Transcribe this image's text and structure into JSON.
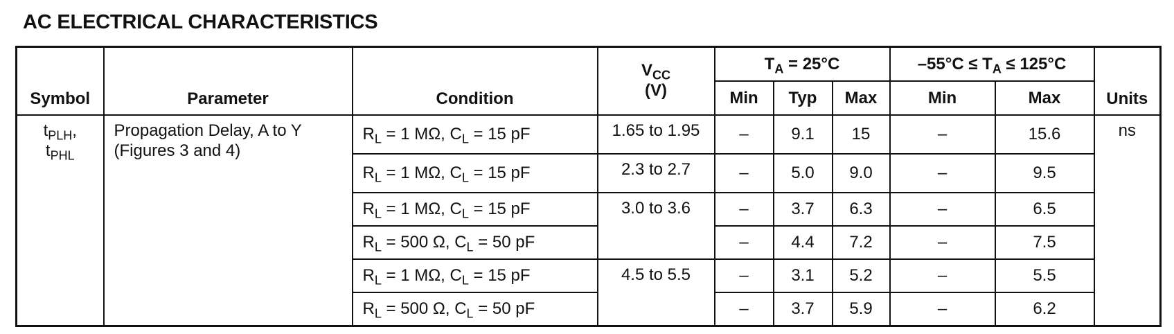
{
  "title": "AC ELECTRICAL CHARACTERISTICS",
  "table": {
    "headers": {
      "symbol": "Symbol",
      "parameter": "Parameter",
      "condition": "Condition",
      "vcc": [
        [
          "V",
          {
            "sub": "CC"
          }
        ],
        [
          "(V)"
        ]
      ],
      "group1": [
        "T",
        {
          "sub": "A"
        },
        " = 25°C"
      ],
      "group2": [
        "–55°C ≤ T",
        {
          "sub": "A"
        },
        " ≤ 125°C"
      ],
      "group1_cols": [
        "Min",
        "Typ",
        "Max"
      ],
      "group2_cols": [
        "Min",
        "Max"
      ],
      "units": "Units"
    },
    "symbol": [
      [
        "t",
        {
          "sub": "PLH"
        },
        ","
      ],
      [
        "t",
        {
          "sub": "PHL"
        }
      ]
    ],
    "parameter": [
      "Propagation Delay, A to Y",
      "(Figures 3 and 4)"
    ],
    "units": "ns",
    "rows": [
      {
        "condition": [
          "R",
          {
            "sub": "L"
          },
          " = 1 MΩ, C",
          {
            "sub": "L"
          },
          " = 15 pF"
        ],
        "vcc": "1.65 to 1.95",
        "values": [
          "–",
          "9.1",
          "15",
          "–",
          "15.6"
        ]
      },
      {
        "condition": [
          "R",
          {
            "sub": "L"
          },
          " = 1 MΩ, C",
          {
            "sub": "L"
          },
          " = 15 pF"
        ],
        "vcc": "2.3 to 2.7",
        "values": [
          "–",
          "5.0",
          "9.0",
          "–",
          "9.5"
        ]
      },
      {
        "condition": [
          "R",
          {
            "sub": "L"
          },
          " = 1 MΩ, C",
          {
            "sub": "L"
          },
          " = 15 pF"
        ],
        "vcc": "3.0 to 3.6",
        "values": [
          "–",
          "3.7",
          "6.3",
          "–",
          "6.5"
        ]
      },
      {
        "condition": [
          "R",
          {
            "sub": "L"
          },
          " = 500 Ω, C",
          {
            "sub": "L"
          },
          " = 50 pF"
        ],
        "vcc": null,
        "values": [
          "–",
          "4.4",
          "7.2",
          "–",
          "7.5"
        ]
      },
      {
        "condition": [
          "R",
          {
            "sub": "L"
          },
          " = 1 MΩ, C",
          {
            "sub": "L"
          },
          " = 15 pF"
        ],
        "vcc": "4.5 to 5.5",
        "values": [
          "–",
          "3.1",
          "5.2",
          "–",
          "5.5"
        ]
      },
      {
        "condition": [
          "R",
          {
            "sub": "L"
          },
          " = 500 Ω, C",
          {
            "sub": "L"
          },
          " = 50 pF"
        ],
        "vcc": null,
        "values": [
          "–",
          "3.7",
          "5.9",
          "–",
          "6.2"
        ]
      }
    ]
  }
}
